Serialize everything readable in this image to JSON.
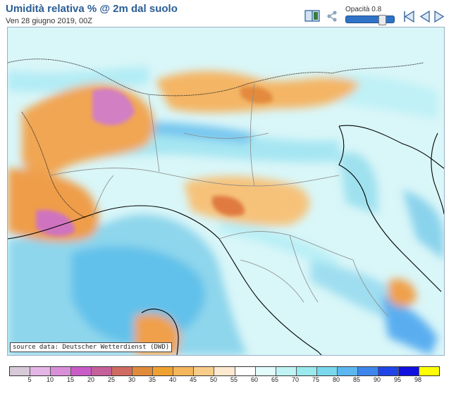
{
  "header": {
    "title": "Umidità relativa % @ 2m dal suolo",
    "subtitle": "Ven 28 giugno 2019, 00Z"
  },
  "toolbar": {
    "opacity_label": "Opacità 0.8",
    "opacity_value": 0.8,
    "icons": [
      "book-icon",
      "share-icon",
      "first-frame-icon",
      "previous-frame-icon",
      "next-frame-icon"
    ]
  },
  "map": {
    "source_label": "source data: Deutscher Wetterdienst (DWD)"
  },
  "legend": {
    "swatches": [
      "#d7c9d8",
      "#e4b5e6",
      "#d98fd8",
      "#c95cc7",
      "#c4609a",
      "#cf6b62",
      "#e08a3a",
      "#f0a231",
      "#f3b65b",
      "#f8cd89",
      "#fce9cf",
      "#ffffff",
      "#e2fbfb",
      "#bff3f4",
      "#9ae9ee",
      "#7ad8ed",
      "#5cb6f0",
      "#3e86ec",
      "#1f45e8",
      "#1010e0",
      "#ffff00"
    ],
    "labels": [
      "5",
      "10",
      "15",
      "20",
      "25",
      "30",
      "35",
      "40",
      "45",
      "50",
      "55",
      "60",
      "65",
      "70",
      "75",
      "80",
      "85",
      "90",
      "95",
      "98"
    ]
  }
}
